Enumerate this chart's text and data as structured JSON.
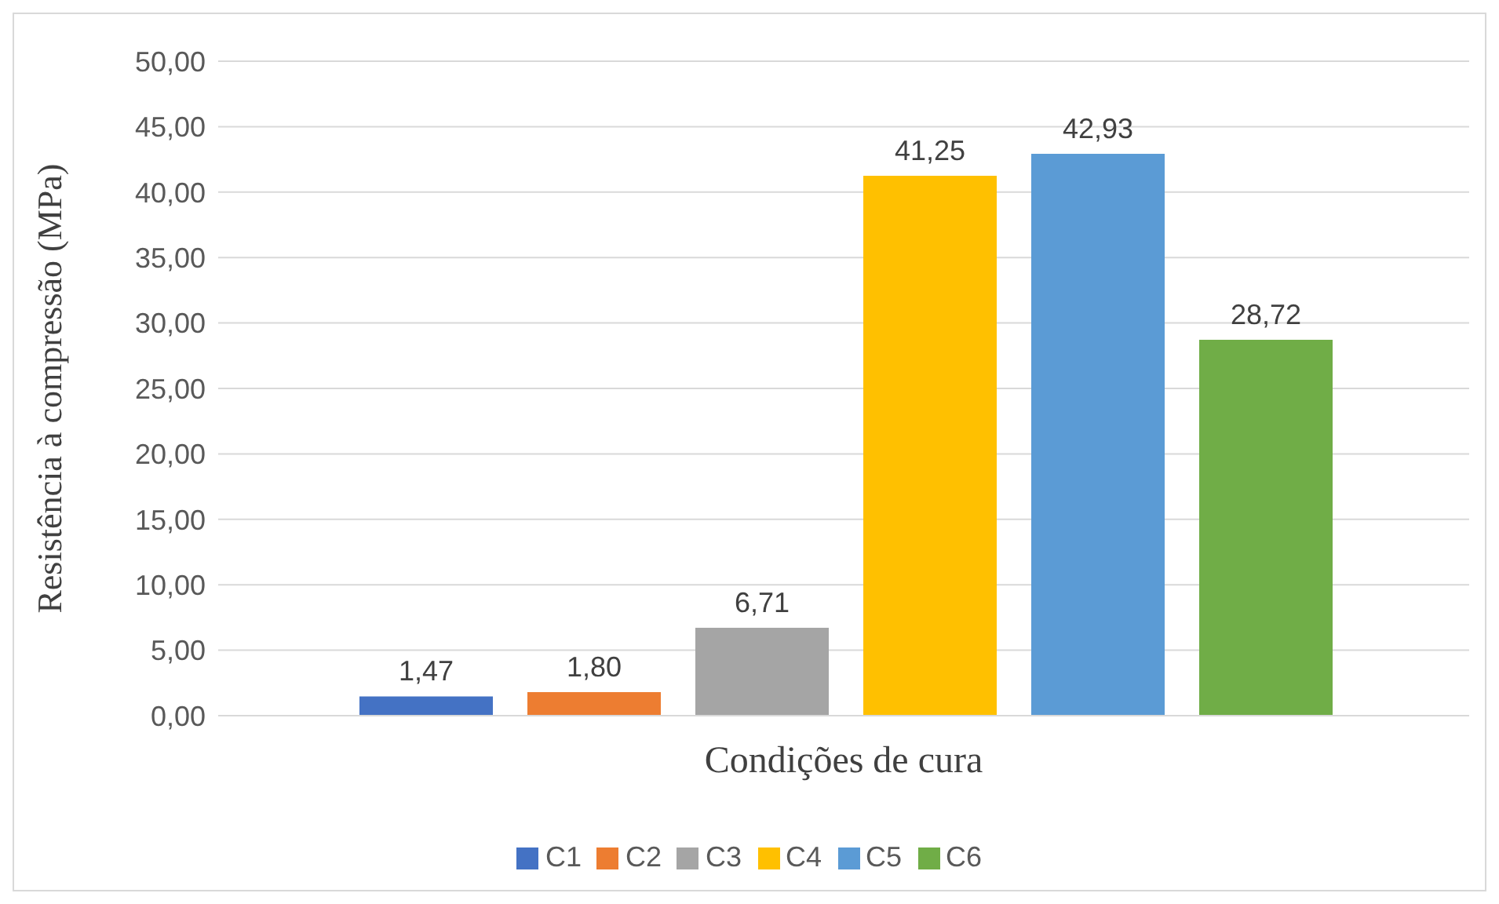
{
  "chart_data": {
    "type": "bar",
    "xlabel": "Condições de cura",
    "ylabel": "Resistência à compressão (MPa)",
    "categories": [
      null
    ],
    "series": [
      {
        "name": "C1",
        "color": "#4472c4",
        "values": [
          1.47
        ],
        "value_labels": [
          "1,47"
        ]
      },
      {
        "name": "C2",
        "color": "#ed7d31",
        "values": [
          1.8
        ],
        "value_labels": [
          "1,80"
        ]
      },
      {
        "name": "C3",
        "color": "#a5a5a5",
        "values": [
          6.71
        ],
        "value_labels": [
          "6,71"
        ]
      },
      {
        "name": "C4",
        "color": "#ffc000",
        "values": [
          41.25
        ],
        "value_labels": [
          "41,25"
        ]
      },
      {
        "name": "C5",
        "color": "#5b9bd5",
        "values": [
          42.93
        ],
        "value_labels": [
          "42,93"
        ]
      },
      {
        "name": "C6",
        "color": "#70ad47",
        "values": [
          28.72
        ],
        "value_labels": [
          "28,72"
        ]
      }
    ],
    "ylim": [
      0,
      50
    ],
    "yticks": [
      {
        "value": 0,
        "label": "0,00"
      },
      {
        "value": 5,
        "label": "5,00"
      },
      {
        "value": 10,
        "label": "10,00"
      },
      {
        "value": 15,
        "label": "15,00"
      },
      {
        "value": 20,
        "label": "20,00"
      },
      {
        "value": 25,
        "label": "25,00"
      },
      {
        "value": 30,
        "label": "30,00"
      },
      {
        "value": 35,
        "label": "35,00"
      },
      {
        "value": 40,
        "label": "40,00"
      },
      {
        "value": 45,
        "label": "45,00"
      },
      {
        "value": 50,
        "label": "50,00"
      }
    ],
    "grid": "y",
    "legend": "bottom"
  }
}
